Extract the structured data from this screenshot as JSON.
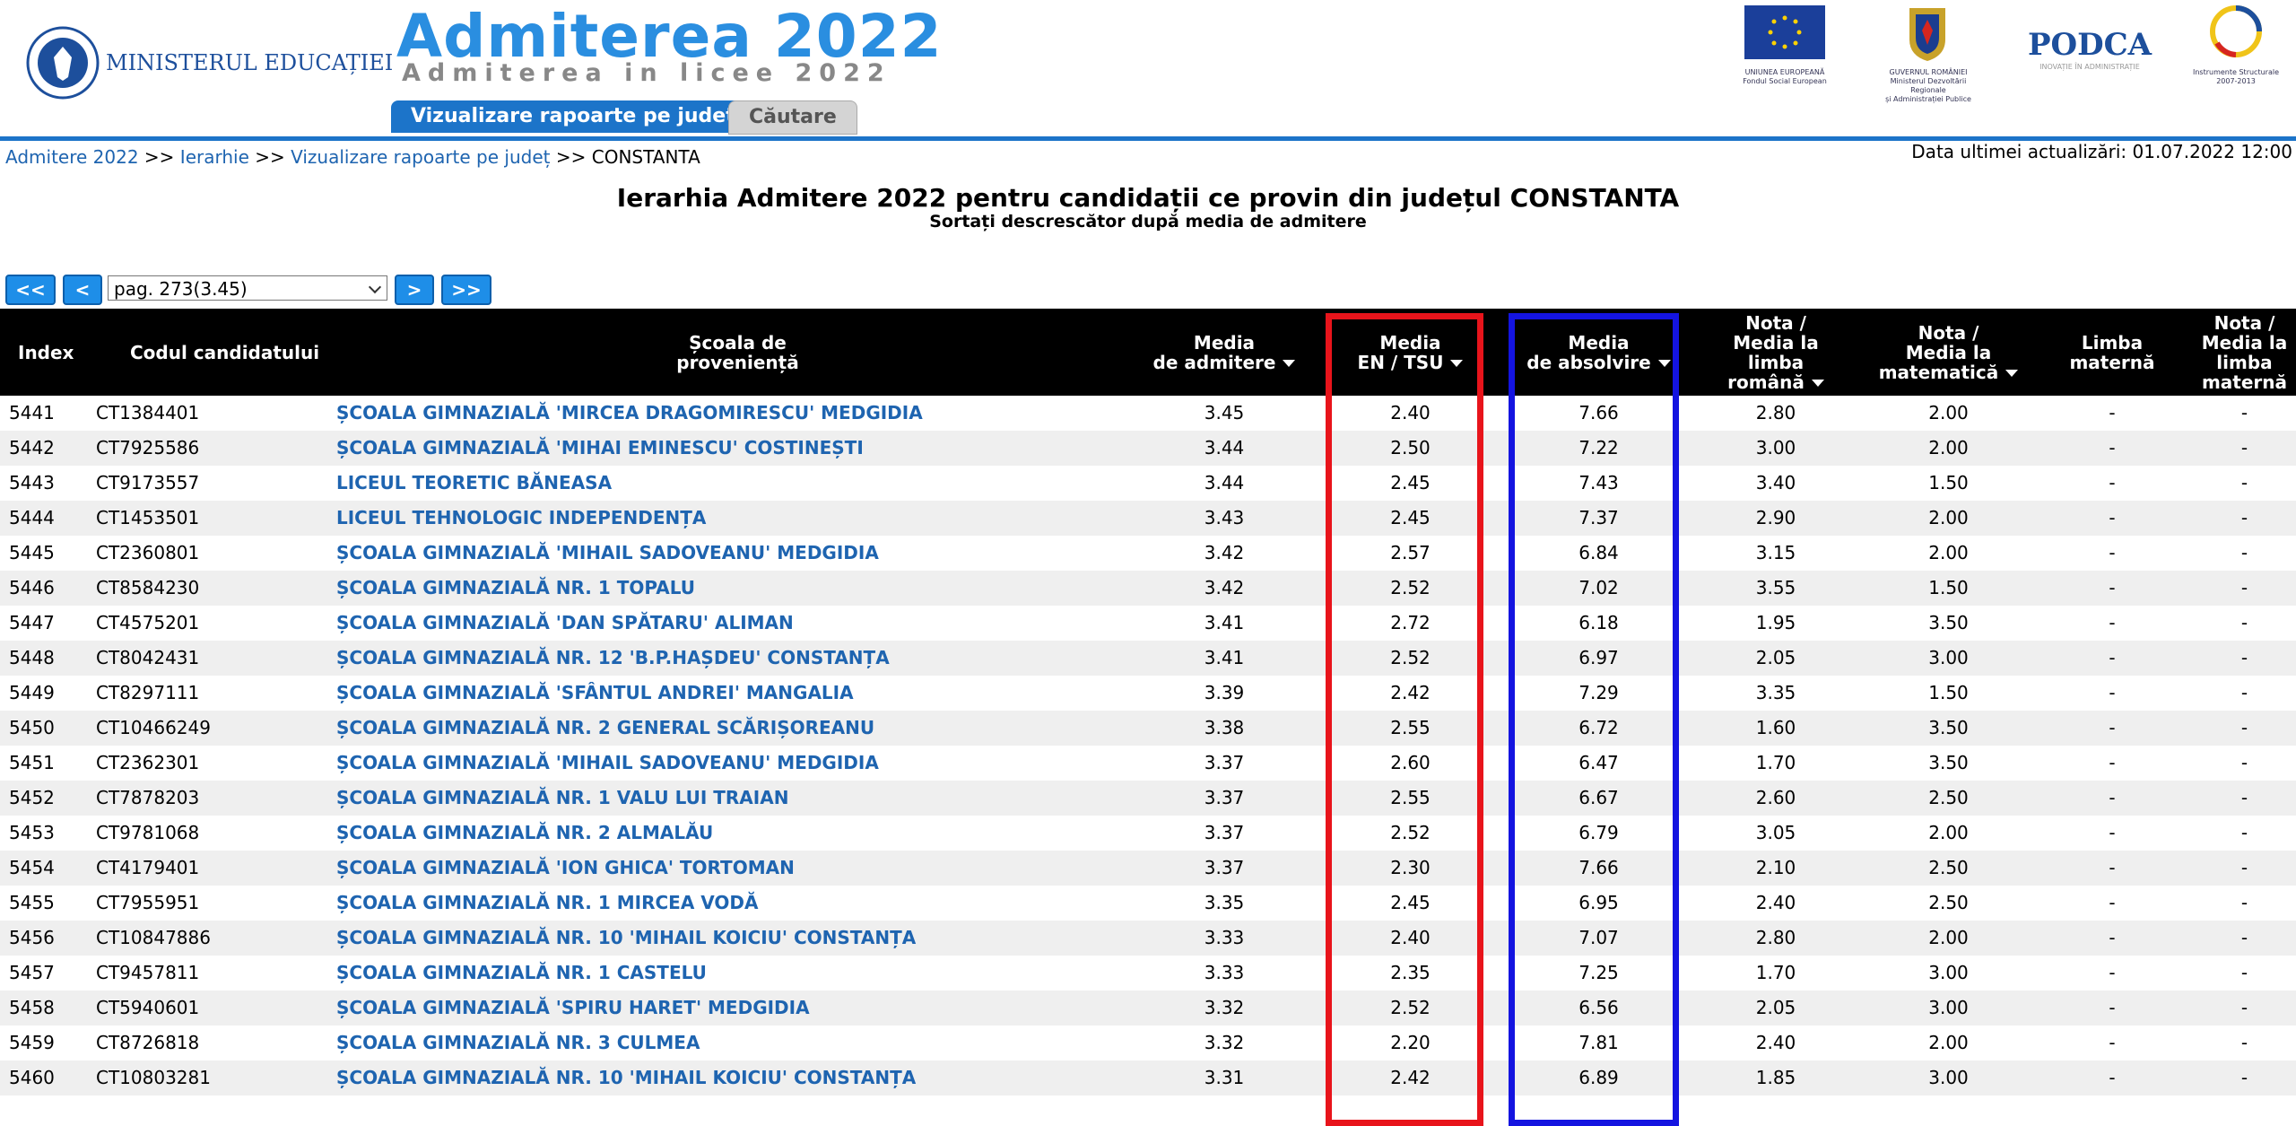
{
  "header": {
    "ministry": "MINISTERUL EDUCAȚIEI",
    "title": "Admiterea 2022",
    "subtitle": "Admiterea in licee 2022",
    "tabs": [
      "Vizualizare rapoarte pe județ",
      "Căutare"
    ],
    "logos": {
      "eu": [
        "UNIUNEA EUROPEANĂ",
        "Fondul Social European"
      ],
      "gov": [
        "GUVERNUL ROMÂNIEI",
        "Ministerul Dezvoltării Regionale",
        "și Administrației Publice"
      ],
      "podca": [
        "PODCA",
        "INOVAȚIE ÎN ADMINISTRAȚIE"
      ],
      "is": [
        "Instrumente Structurale",
        "2007-2013"
      ]
    }
  },
  "breadcrumb": {
    "links": [
      "Admitere 2022",
      "Ierarhie",
      "Vizualizare rapoarte pe județ"
    ],
    "separator": ">>",
    "current": "CONSTANTA",
    "last_update": "Data ultimei actualizări: 01.07.2022 12:00"
  },
  "page_title": "Ierarhia Admitere 2022 pentru candidații ce provin din județul CONSTANTA",
  "page_subtitle": "Sortați descrescător după media de admitere",
  "pager": {
    "first": "<<",
    "prev": "<",
    "select": "pag. 273(3.45)",
    "next": ">",
    "last": ">>"
  },
  "table": {
    "columns": [
      "Index",
      "Codul candidatului",
      "Școala de\nproveniență",
      "Media\nde admitere",
      "Media\nEN / TSU",
      "Media\nde absolvire",
      "Nota /\nMedia la\nlimba\nromână",
      "Nota /\nMedia la\nmatematică",
      "Limba\nmaternă",
      "Nota /\nMedia la\nlimba\nmaternă"
    ],
    "rows": [
      [
        "5441",
        "CT1384401",
        "ȘCOALA GIMNAZIALĂ 'MIRCEA DRAGOMIRESCU' MEDGIDIA",
        "3.45",
        "2.40",
        "7.66",
        "2.80",
        "2.00",
        "-",
        "-"
      ],
      [
        "5442",
        "CT7925586",
        "ȘCOALA GIMNAZIALĂ 'MIHAI EMINESCU' COSTINEȘTI",
        "3.44",
        "2.50",
        "7.22",
        "3.00",
        "2.00",
        "-",
        "-"
      ],
      [
        "5443",
        "CT9173557",
        "LICEUL TEORETIC BĂNEASA",
        "3.44",
        "2.45",
        "7.43",
        "3.40",
        "1.50",
        "-",
        "-"
      ],
      [
        "5444",
        "CT1453501",
        "LICEUL TEHNOLOGIC INDEPENDENȚA",
        "3.43",
        "2.45",
        "7.37",
        "2.90",
        "2.00",
        "-",
        "-"
      ],
      [
        "5445",
        "CT2360801",
        "ȘCOALA GIMNAZIALĂ 'MIHAIL SADOVEANU' MEDGIDIA",
        "3.42",
        "2.57",
        "6.84",
        "3.15",
        "2.00",
        "-",
        "-"
      ],
      [
        "5446",
        "CT8584230",
        "ȘCOALA GIMNAZIALĂ NR. 1 TOPALU",
        "3.42",
        "2.52",
        "7.02",
        "3.55",
        "1.50",
        "-",
        "-"
      ],
      [
        "5447",
        "CT4575201",
        "ȘCOALA GIMNAZIALĂ 'DAN SPĂTARU' ALIMAN",
        "3.41",
        "2.72",
        "6.18",
        "1.95",
        "3.50",
        "-",
        "-"
      ],
      [
        "5448",
        "CT8042431",
        "ȘCOALA GIMNAZIALĂ NR. 12 'B.P.HAȘDEU' CONSTANȚA",
        "3.41",
        "2.52",
        "6.97",
        "2.05",
        "3.00",
        "-",
        "-"
      ],
      [
        "5449",
        "CT8297111",
        "ȘCOALA GIMNAZIALĂ 'SFÂNTUL ANDREI' MANGALIA",
        "3.39",
        "2.42",
        "7.29",
        "3.35",
        "1.50",
        "-",
        "-"
      ],
      [
        "5450",
        "CT10466249",
        "ȘCOALA GIMNAZIALĂ NR. 2 GENERAL SCĂRIȘOREANU",
        "3.38",
        "2.55",
        "6.72",
        "1.60",
        "3.50",
        "-",
        "-"
      ],
      [
        "5451",
        "CT2362301",
        "ȘCOALA GIMNAZIALĂ 'MIHAIL SADOVEANU' MEDGIDIA",
        "3.37",
        "2.60",
        "6.47",
        "1.70",
        "3.50",
        "-",
        "-"
      ],
      [
        "5452",
        "CT7878203",
        "ȘCOALA GIMNAZIALĂ NR. 1 VALU LUI TRAIAN",
        "3.37",
        "2.55",
        "6.67",
        "2.60",
        "2.50",
        "-",
        "-"
      ],
      [
        "5453",
        "CT9781068",
        "ȘCOALA GIMNAZIALĂ NR. 2 ALMALĂU",
        "3.37",
        "2.52",
        "6.79",
        "3.05",
        "2.00",
        "-",
        "-"
      ],
      [
        "5454",
        "CT4179401",
        "ȘCOALA GIMNAZIALĂ 'ION GHICA' TORTOMAN",
        "3.37",
        "2.30",
        "7.66",
        "2.10",
        "2.50",
        "-",
        "-"
      ],
      [
        "5455",
        "CT7955951",
        "ȘCOALA GIMNAZIALĂ NR. 1 MIRCEA VODĂ",
        "3.35",
        "2.45",
        "6.95",
        "2.40",
        "2.50",
        "-",
        "-"
      ],
      [
        "5456",
        "CT10847886",
        "ȘCOALA GIMNAZIALĂ NR. 10 'MIHAIL KOICIU' CONSTANȚA",
        "3.33",
        "2.40",
        "7.07",
        "2.80",
        "2.00",
        "-",
        "-"
      ],
      [
        "5457",
        "CT9457811",
        "ȘCOALA GIMNAZIALĂ NR. 1 CASTELU",
        "3.33",
        "2.35",
        "7.25",
        "1.70",
        "3.00",
        "-",
        "-"
      ],
      [
        "5458",
        "CT5940601",
        "ȘCOALA GIMNAZIALĂ 'SPIRU HARET' MEDGIDIA",
        "3.32",
        "2.52",
        "6.56",
        "2.05",
        "3.00",
        "-",
        "-"
      ],
      [
        "5459",
        "CT8726818",
        "ȘCOALA GIMNAZIALĂ NR. 3 CULMEA",
        "3.32",
        "2.20",
        "7.81",
        "2.40",
        "2.00",
        "-",
        "-"
      ],
      [
        "5460",
        "CT10803281",
        "ȘCOALA GIMNAZIALĂ NR. 10 'MIHAIL KOICIU' CONSTANȚA",
        "3.31",
        "2.42",
        "6.89",
        "1.85",
        "3.00",
        "-",
        "-"
      ]
    ]
  }
}
